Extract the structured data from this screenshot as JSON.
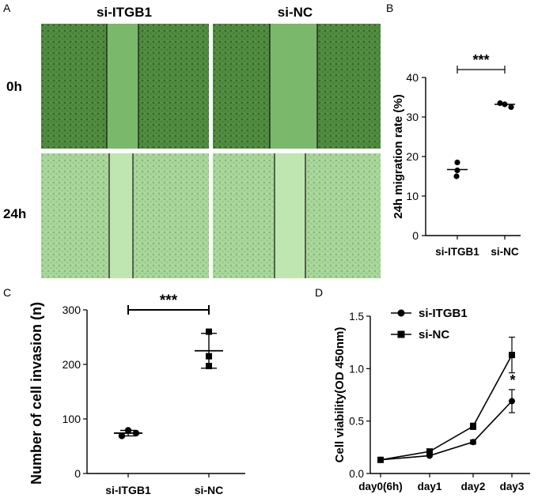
{
  "panel_a": {
    "letter": "A",
    "columns": [
      "si-ITGB1",
      "si-NC"
    ],
    "rows": [
      "0h",
      "24h"
    ]
  },
  "panel_b": {
    "letter": "B"
  },
  "panel_c": {
    "letter": "C"
  },
  "panel_d": {
    "letter": "D"
  },
  "colors": {
    "micro_dark": "#4f8a3f",
    "micro_light": "#9fcf8f",
    "gap_dark": "#7ab86c",
    "gap_light": "#bfe6b0"
  },
  "chart_data": [
    {
      "type": "scatter",
      "panel": "B",
      "ylabel": "24h migration rate (%)",
      "categories": [
        "si-ITGB1",
        "si-NC"
      ],
      "ylim": [
        0,
        40
      ],
      "yticks": [
        0,
        10,
        20,
        30,
        40
      ],
      "points": [
        [
          18.5,
          16.5,
          15.0
        ],
        [
          33.5,
          33.2,
          32.5
        ]
      ],
      "means": [
        16.7,
        33.2
      ],
      "significance": "***"
    },
    {
      "type": "scatter",
      "panel": "C",
      "ylabel": "Number of cell invasion (n)",
      "categories": [
        "si-ITGB1",
        "si-NC"
      ],
      "ylim": [
        0,
        300
      ],
      "yticks": [
        0,
        100,
        200,
        300
      ],
      "points": [
        [
          69,
          79,
          74
        ],
        [
          260,
          215,
          197
        ]
      ],
      "means": [
        74,
        225
      ],
      "sd": [
        5,
        32
      ],
      "significance": "***"
    },
    {
      "type": "line",
      "panel": "D",
      "ylabel": "Cell viability(OD 450nm)",
      "categories": [
        "day0(6h)",
        "day1",
        "day2",
        "day3"
      ],
      "ylim": [
        0,
        1.5
      ],
      "yticks": [
        "0.0",
        "0.5",
        "1.0",
        "1.5"
      ],
      "series": [
        {
          "name": "si-ITGB1",
          "marker": "circle",
          "values": [
            0.13,
            0.17,
            0.3,
            0.69
          ],
          "err": [
            0.01,
            0.01,
            0.02,
            0.11
          ]
        },
        {
          "name": "si-NC",
          "marker": "square",
          "values": [
            0.13,
            0.21,
            0.45,
            1.13
          ],
          "err": [
            0.01,
            0.01,
            0.03,
            0.17
          ]
        }
      ],
      "annotation": "*"
    }
  ]
}
